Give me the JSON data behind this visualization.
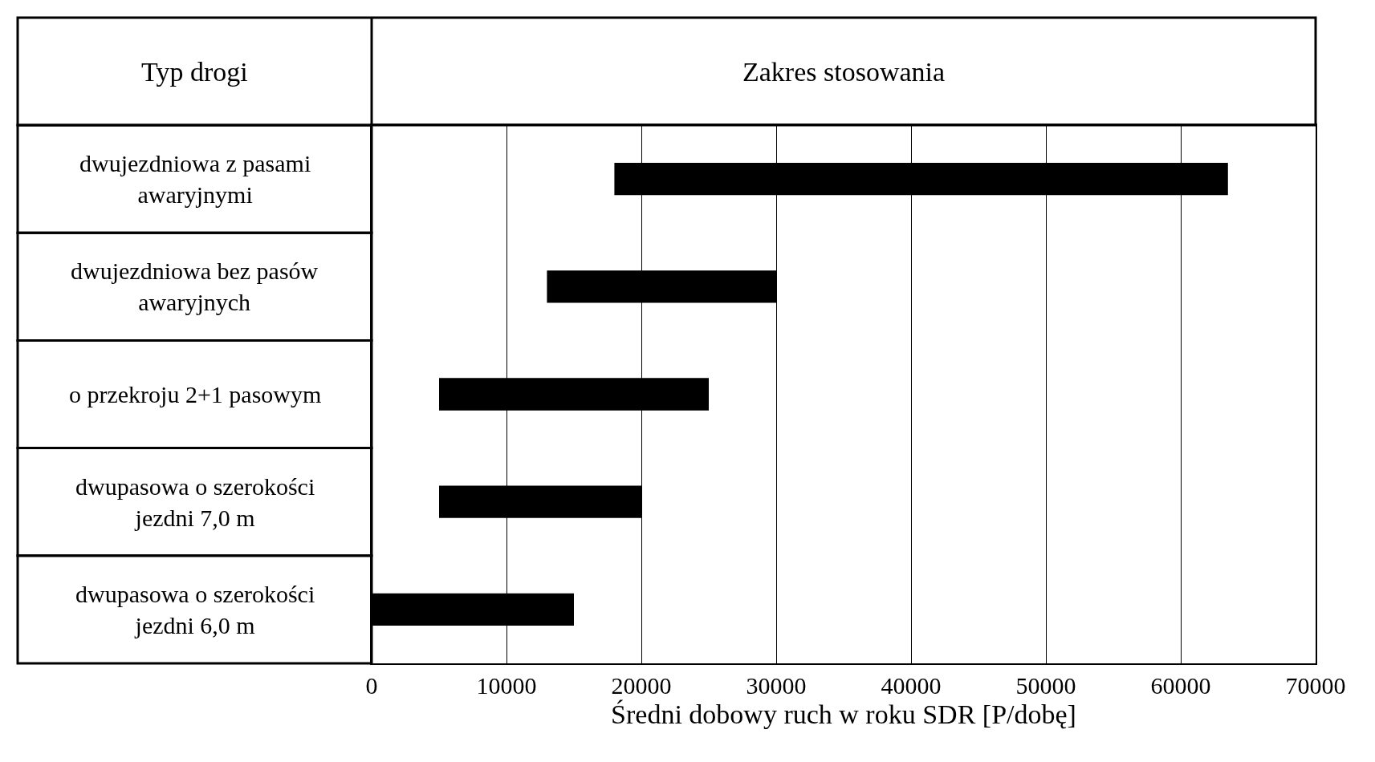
{
  "chart_data": {
    "type": "bar",
    "orientation": "horizontal",
    "title": "Zakres stosowania",
    "ylabel": "Typ drogi",
    "xlabel": "Średni dobowy ruch w roku SDR [P/dobę]",
    "categories": [
      "dwujezdniowa z pasami awaryjnymi",
      "dwujezdniowa bez pasów awaryjnych",
      "o przekroju 2+1 pasowym",
      "dwupasowa o szerokości jezdni 7,0 m",
      "dwupasowa o szerokości jezdni 6,0 m"
    ],
    "base": [
      18000,
      13000,
      5000,
      5000,
      0
    ],
    "values": [
      45500,
      17000,
      20000,
      15000,
      15000
    ],
    "color": "#000000",
    "xlim": [
      0,
      70000
    ],
    "xticks": [
      0,
      10000,
      20000,
      30000,
      40000,
      50000,
      60000,
      70000
    ],
    "grid": "x"
  }
}
